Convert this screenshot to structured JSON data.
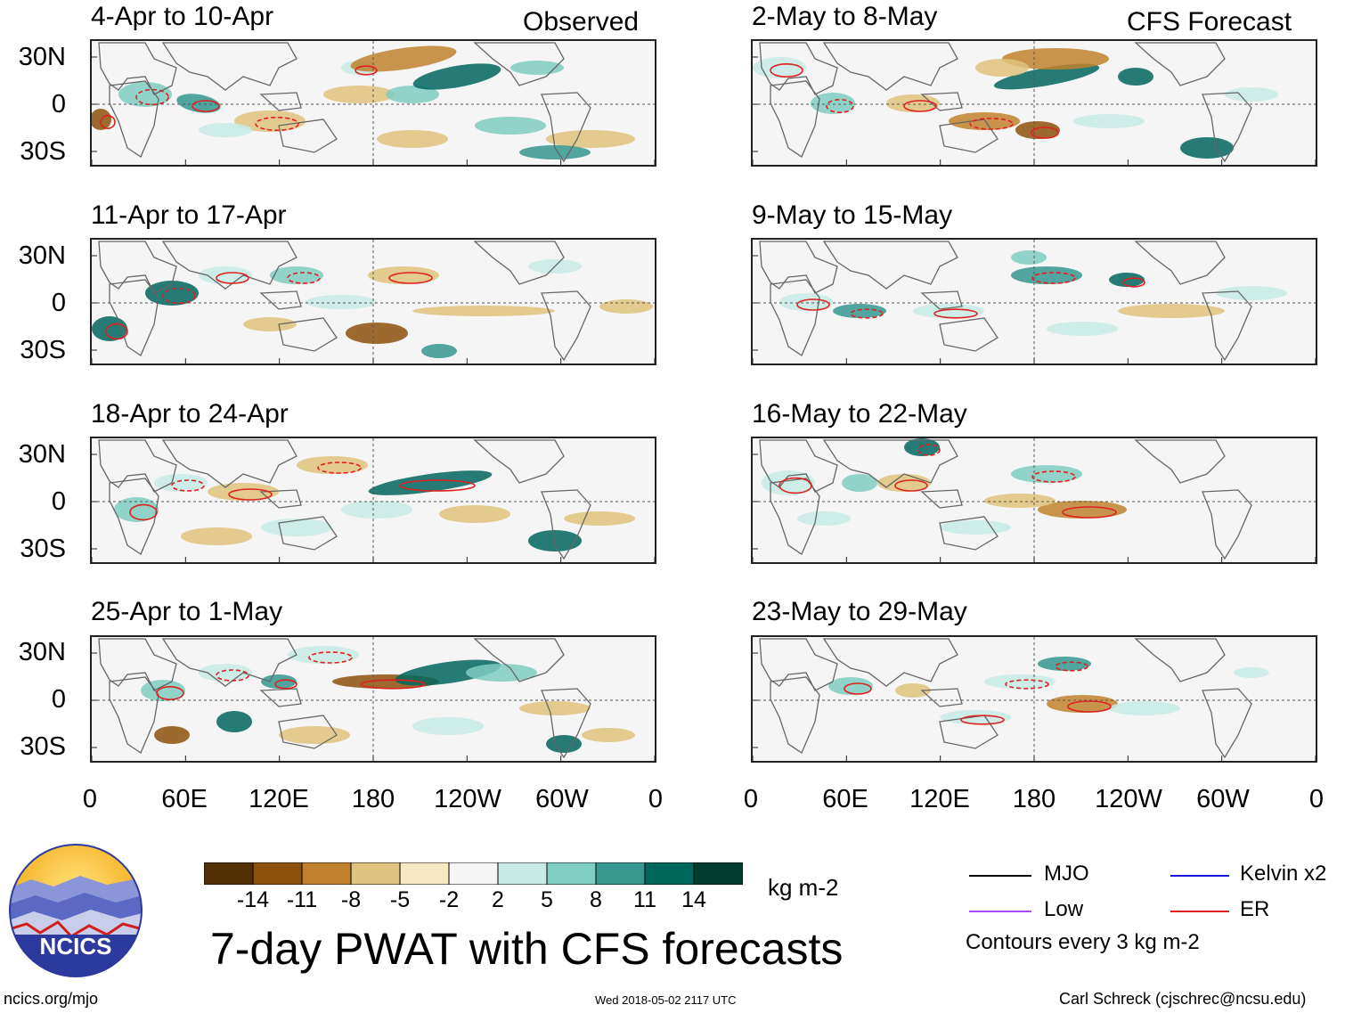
{
  "header": {
    "observed_label": "Observed",
    "forecast_label": "CFS Forecast"
  },
  "panels_left": [
    {
      "title": "4-Apr to 10-Apr"
    },
    {
      "title": "11-Apr to 17-Apr"
    },
    {
      "title": "18-Apr to 24-Apr"
    },
    {
      "title": "25-Apr to 1-May"
    }
  ],
  "panels_right": [
    {
      "title": "2-May to 8-May"
    },
    {
      "title": "9-May to 15-May"
    },
    {
      "title": "16-May to 22-May"
    },
    {
      "title": "23-May to 29-May"
    }
  ],
  "chart_data": {
    "type": "heatmap",
    "title": "7-day PWAT with CFS forecasts",
    "units": "kg m-2",
    "lat_ticks": [
      "30N",
      "0",
      "30S"
    ],
    "lon_ticks": [
      "0",
      "60E",
      "120E",
      "180",
      "120W",
      "60W",
      "0"
    ],
    "colorbar": {
      "levels": [
        "-14",
        "-11",
        "-8",
        "-5",
        "-2",
        "2",
        "5",
        "8",
        "11",
        "14"
      ],
      "colors": [
        "#543005",
        "#8c510a",
        "#bf812d",
        "#dfc27d",
        "#f6e8c3",
        "#f5f5f5",
        "#c7eae5",
        "#80cdc1",
        "#35978f",
        "#01665e",
        "#003c30"
      ]
    },
    "contour_note": "Contours every 3 kg m-2"
  },
  "legend": {
    "items": [
      {
        "label": "MJO",
        "color": "#000000"
      },
      {
        "label": "Kelvin x2",
        "color": "#1a1adf"
      },
      {
        "label": "Low",
        "color": "#a64dff"
      },
      {
        "label": "ER",
        "color": "#e02020"
      }
    ]
  },
  "footer": {
    "url": "ncics.org/mjo",
    "timestamp": "Wed 2018-05-02 2117 UTC",
    "author": "Carl Schreck (cjschrec@ncsu.edu)",
    "logo_text": "NCICS"
  }
}
